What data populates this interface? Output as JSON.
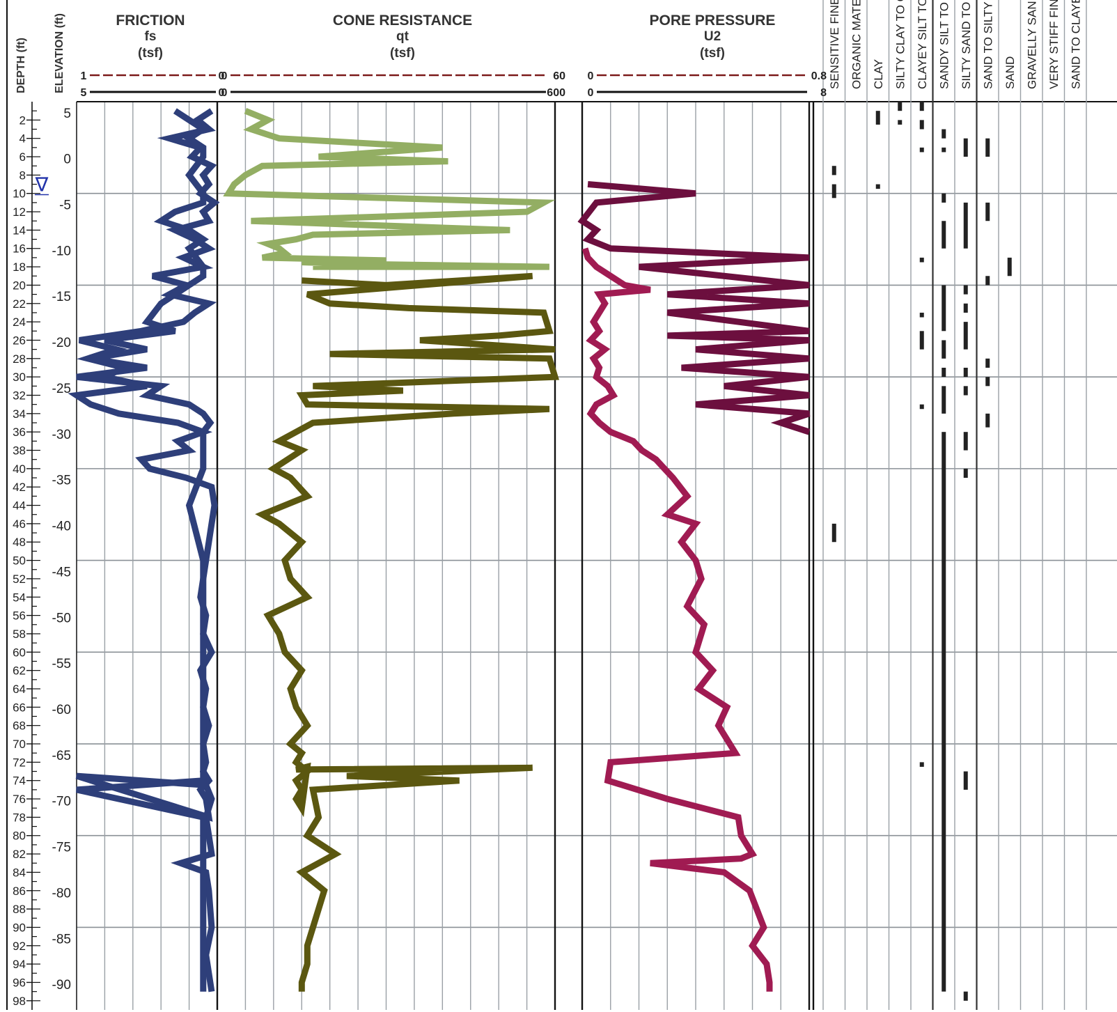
{
  "chart_data": {
    "type": "line",
    "title": "",
    "depth_axis": {
      "label": "DEPTH (ft)",
      "range": [
        0,
        99
      ],
      "ticks": [
        2,
        4,
        6,
        8,
        10,
        12,
        14,
        16,
        18,
        20,
        22,
        24,
        26,
        28,
        30,
        32,
        34,
        36,
        38,
        40,
        42,
        44,
        46,
        48,
        50,
        52,
        54,
        56,
        58,
        60,
        62,
        64,
        66,
        68,
        70,
        72,
        74,
        76,
        78,
        80,
        82,
        84,
        86,
        88,
        90,
        92,
        94,
        96,
        98
      ]
    },
    "elevation_axis": {
      "label": "ELEVATION (ft)",
      "ticks": [
        5,
        0,
        -5,
        -10,
        -15,
        -20,
        -25,
        -30,
        -35,
        -40,
        -45,
        -50,
        -55,
        -60,
        -65,
        -70,
        -75,
        -80,
        -85,
        -90
      ]
    },
    "groundwater_depth": 9,
    "groundwater_symbol": "∇",
    "panels": [
      {
        "title": "FRICTION",
        "symbol": "fs",
        "unit": "(tsf)",
        "scales": [
          {
            "min_label": "1",
            "max_label": "0",
            "style": "dashed",
            "color": "#7b1a1a"
          },
          {
            "min_label": "5",
            "max_label": "0",
            "style": "solid",
            "color": "#111111"
          }
        ],
        "series": [
          {
            "name": "fs (0–5 tsf)",
            "color": "#2e3f7a",
            "x": [
              0.2,
              0.7,
              0.3,
              1.7,
              0.6,
              0.9,
              0.2,
              0.5,
              0.3,
              0.6,
              0.1,
              0.5,
              0.3,
              1.5,
              0.8,
              0.3,
              1.2,
              0.5,
              2.3,
              1.1,
              1.7,
              0.3,
              0.8,
              1.2,
              2.7,
              4.9,
              3.6,
              4.6,
              3.3,
              4.0,
              2.5,
              5.0,
              4.5,
              3.5,
              1.4,
              0.5,
              1.4,
              1.0,
              2.7,
              2.4,
              1.1,
              0.2,
              0.1,
              0.2,
              0.3,
              0.4,
              0.5,
              0.6,
              0.4,
              0.5,
              0.2,
              0.6,
              0.4,
              0.5,
              0.3,
              0.5,
              0.4,
              0.5,
              0.3,
              0.6,
              0.4,
              0.3,
              5.0,
              0.4,
              0.2,
              0.4,
              0.3,
              0.2,
              1.3,
              0.4,
              0.3,
              0.2,
              0.4,
              0.2
            ],
            "depth": [
              1,
              2,
              3,
              4,
              5,
              6,
              7,
              8,
              9,
              10,
              11,
              12,
              13,
              14,
              15,
              16,
              17,
              18,
              19,
              20,
              21,
              22,
              23,
              24,
              25,
              26,
              27,
              28,
              29,
              30,
              31,
              32,
              33,
              34,
              35,
              36,
              37,
              38,
              39,
              40,
              41,
              42,
              44,
              46,
              48,
              50,
              52,
              54,
              56,
              58,
              60,
              62,
              64,
              66,
              68,
              70,
              72,
              73,
              74,
              75,
              76,
              78,
              73.5,
              74.5,
              76,
              78,
              80,
              82,
              83,
              84,
              86,
              90,
              93,
              97
            ]
          },
          {
            "name": "fs (0–1 tsf)",
            "color": "#2e3f7a",
            "x": [
              0.3,
              0.2,
              0.1,
              0.2,
              0.1,
              0.1,
              0.2,
              0.1,
              0.1,
              0.3,
              0.4,
              0.2,
              0.1,
              0.2,
              0.1,
              0.1,
              0.2,
              0.4,
              0.5,
              0.3,
              0.8,
              0.5,
              0.9,
              0.5,
              1.0,
              0.4,
              0.5,
              0.2,
              0.1,
              0.05,
              0.1,
              0.1,
              0.2,
              0.1,
              0.1,
              0.1,
              0.1,
              0.1,
              0.1,
              0.1,
              0.1,
              1.0,
              0.1,
              0.1,
              0.1,
              0.1
            ],
            "depth": [
              1,
              2,
              3,
              4,
              5,
              6,
              8,
              10,
              11,
              12,
              13,
              14,
              15,
              16,
              18,
              19,
              20,
              22,
              24,
              25,
              26,
              27,
              28,
              29,
              30,
              31,
              32,
              33,
              34,
              35,
              36,
              40,
              44,
              50,
              56,
              60,
              66,
              70,
              72,
              73,
              74,
              75,
              78,
              84,
              90,
              97
            ]
          }
        ]
      },
      {
        "title": "CONE RESISTANCE",
        "symbol": "qt",
        "unit": "(tsf)",
        "scales": [
          {
            "min_label": "0",
            "max_label": "60",
            "style": "dashed",
            "color": "#7b1a1a"
          },
          {
            "min_label": "0",
            "max_label": "600",
            "style": "solid",
            "color": "#111111"
          }
        ],
        "series": [
          {
            "name": "qt (0–600 tsf)",
            "color": "#5b5710",
            "x": [
              150,
              300,
              560,
              160,
              200,
              340,
              580,
              590,
              500,
              360,
              600,
              200,
              590,
              600,
              170,
              330,
              150,
              160,
              590,
              420,
              170,
              140,
              110,
              150,
              100,
              130,
              160,
              80,
              110,
              150,
              120,
              130,
              160,
              90,
              110,
              120,
              150,
              130,
              140,
              160,
              130,
              150,
              140,
              160,
              140,
              150,
              140,
              150,
              160,
              140,
              560,
              230,
              430,
              170,
              180,
              160,
              210,
              150,
              190,
              170,
              160,
              160,
              150,
              150
            ],
            "depth": [
              19.5,
              20,
              19,
              21,
              22,
              22.5,
              23,
              25,
              25.5,
              26,
              27,
              27.5,
              28,
              30,
              31,
              31.5,
              32,
              33,
              33.5,
              34,
              35,
              36,
              37,
              38,
              40,
              41,
              43,
              45,
              46,
              48,
              50,
              52,
              54,
              56,
              58,
              60,
              62,
              64,
              66,
              68,
              70,
              71,
              72,
              73,
              74,
              75,
              76,
              77,
              72.5,
              72.8,
              72.6,
              73.5,
              74,
              75,
              78,
              80,
              82,
              84,
              86,
              90,
              92,
              94,
              96,
              97
            ]
          },
          {
            "name": "qt (0–60 tsf)",
            "color": "#93ae63",
            "x": [
              5,
              9,
              6,
              11,
              40,
              18,
              41,
              8,
              5,
              3,
              2,
              58,
              55,
              6,
              52,
              17,
              14,
              9,
              11,
              12,
              8,
              30,
              15,
              25,
              59,
              17
            ],
            "depth": [
              1,
              2,
              3,
              4,
              5,
              6,
              6.5,
              7,
              8,
              9,
              10,
              11,
              12,
              13,
              14,
              14.5,
              15,
              15.5,
              16,
              16.5,
              17,
              17.3,
              17.5,
              17.7,
              18,
              18
            ]
          }
        ]
      },
      {
        "title": "PORE PRESSURE",
        "symbol": "U2",
        "unit": "(tsf)",
        "scales": [
          {
            "min_label": "0",
            "max_label": "0.8",
            "style": "dashed",
            "color": "#7b1a1a"
          },
          {
            "min_label": "0",
            "max_label": "8",
            "style": "solid",
            "color": "#111111"
          }
        ],
        "series": [
          {
            "name": "U2 (0–8 tsf)",
            "color": "#a01b52",
            "x": [
              0.1,
              0.2,
              0.5,
              1.0,
              1.5,
              2.4,
              0.6,
              0.8,
              0.4,
              0.6,
              0.3,
              0.8,
              0.4,
              0.6,
              0.5,
              0.9,
              1.1,
              0.5,
              0.3,
              0.6,
              1.0,
              1.8,
              2.1,
              2.6,
              2.9,
              3.2,
              3.7,
              3.0,
              4.0,
              3.5,
              4.0,
              4.2,
              3.7,
              4.3,
              4.0,
              4.6,
              4.1,
              5.1,
              4.8,
              5.2,
              5.4,
              1.0,
              0.9,
              3.0,
              5.5,
              5.6,
              6.0,
              5.6,
              2.4,
              5.0,
              5.9,
              6.4,
              6.0,
              6.5,
              6.6,
              6.6
            ],
            "depth": [
              16,
              17,
              18,
              19,
              20,
              20.5,
              21,
              22,
              24,
              25,
              26,
              27,
              28,
              29,
              30,
              31,
              32,
              33,
              34,
              35,
              36,
              37,
              38,
              39,
              40,
              41,
              43,
              45,
              46,
              48,
              50,
              52,
              55,
              57,
              60,
              62,
              64,
              66,
              68,
              70,
              71,
              72,
              74,
              76,
              78,
              80,
              82,
              82.5,
              83,
              84,
              86,
              90,
              92,
              94,
              96,
              97
            ]
          },
          {
            "name": "U2 (0–0.8 tsf)",
            "color": "#6c0f3e",
            "x": [
              0.02,
              0.4,
              0.05,
              0.0,
              0.05,
              0.02,
              0.1,
              0.8,
              0.2,
              0.8,
              0.3,
              0.8,
              0.3,
              0.8,
              0.3,
              0.8,
              0.4,
              0.8,
              0.35,
              0.8,
              0.5,
              0.8,
              0.4,
              0.8,
              0.7,
              0.8
            ],
            "depth": [
              9,
              10,
              11,
              13,
              14,
              15,
              16,
              17,
              18,
              20,
              21,
              22,
              23,
              25,
              25.5,
              26,
              27,
              28,
              29,
              30,
              31,
              32,
              33,
              34,
              35,
              36
            ]
          }
        ]
      }
    ],
    "soil_classes": [
      "SENSITIVE FINE GRAINED",
      "ORGANIC MATERIAL",
      "CLAY",
      "SILTY CLAY TO CLAY",
      "CLAYEY SILT TO SILTY CLAY",
      "SANDY SILT TO CLAYEY SILT",
      "SILTY SAND TO SANDY SILT",
      "SAND TO SILTY SAND",
      "SAND",
      "GRAVELLY SAND TO SAND",
      "VERY STIFF FINE GRAINED",
      "SAND TO CLAYEY SAND"
    ],
    "soil_bands": [
      {
        "class_index": 0,
        "depth_ranges": [
          [
            7,
            8
          ],
          [
            9,
            10.5
          ],
          [
            46,
            48
          ]
        ]
      },
      {
        "class_index": 2,
        "depth_ranges": [
          [
            1,
            2.5
          ],
          [
            9,
            9.5
          ]
        ]
      },
      {
        "class_index": 3,
        "depth_ranges": [
          [
            0,
            1
          ],
          [
            2,
            2.5
          ]
        ]
      },
      {
        "class_index": 4,
        "depth_ranges": [
          [
            0,
            1
          ],
          [
            2,
            3
          ],
          [
            5,
            5.5
          ],
          [
            17,
            17.5
          ],
          [
            23,
            23.5
          ],
          [
            25,
            27
          ],
          [
            33,
            33.5
          ],
          [
            72,
            72.5
          ]
        ]
      },
      {
        "class_index": 5,
        "depth_ranges": [
          [
            3,
            4
          ],
          [
            5,
            5.5
          ],
          [
            10,
            11
          ],
          [
            13,
            16
          ],
          [
            20,
            25
          ],
          [
            26,
            28
          ],
          [
            29,
            30
          ],
          [
            31,
            34
          ],
          [
            36,
            97
          ]
        ]
      },
      {
        "class_index": 6,
        "depth_ranges": [
          [
            4,
            6
          ],
          [
            11,
            16
          ],
          [
            20,
            21
          ],
          [
            22,
            23
          ],
          [
            24,
            27
          ],
          [
            29,
            30
          ],
          [
            31,
            32
          ],
          [
            36,
            38
          ],
          [
            40,
            41
          ],
          [
            73,
            75
          ],
          [
            97,
            98
          ]
        ]
      },
      {
        "class_index": 7,
        "depth_ranges": [
          [
            4,
            6
          ],
          [
            11,
            13
          ],
          [
            19,
            20
          ],
          [
            28,
            29
          ],
          [
            30,
            31
          ],
          [
            34,
            35.5
          ]
        ]
      },
      {
        "class_index": 8,
        "depth_ranges": [
          [
            17,
            19
          ]
        ]
      }
    ]
  }
}
